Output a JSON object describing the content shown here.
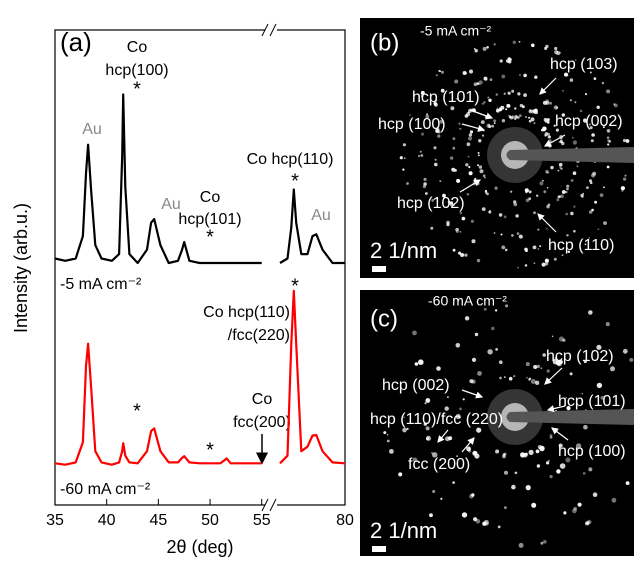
{
  "chart_data": {
    "type": "line",
    "xlabel": "2θ (deg)",
    "ylabel": "Intensity (arb.u.)",
    "x": [
      35,
      36,
      37,
      37.7,
      38.0,
      38.2,
      38.5,
      38.9,
      39.5,
      40.5,
      41.2,
      41.5,
      41.6,
      41.8,
      42.2,
      43,
      43.9,
      44.3,
      44.6,
      45.2,
      46,
      46.9,
      47.3,
      47.5,
      48,
      49,
      50,
      51,
      51.4,
      51.6,
      52,
      53,
      54,
      55,
      74.8,
      75.4,
      75.7,
      75.9,
      76.1,
      76.5,
      77.0,
      77.4,
      77.7,
      78.2,
      79,
      80
    ],
    "xlim": [
      [
        35,
        55.8
      ],
      [
        74.8,
        80
      ]
    ],
    "ylim": [
      -6,
      100
    ],
    "xticks": [
      35,
      40,
      45,
      50,
      55,
      80
    ],
    "series": [
      {
        "name": "-5 mA cm⁻²",
        "color": "#000000",
        "values": [
          49,
          48.5,
          49,
          54,
          68,
          74.4,
          64,
          52,
          49,
          48.5,
          50,
          72,
          85.6,
          65,
          50,
          48,
          51,
          57,
          57.8,
          52,
          48,
          48.5,
          51,
          52.7,
          48.5,
          48,
          48,
          48,
          48,
          48,
          48,
          48,
          48,
          48,
          48,
          49,
          56,
          64.4,
          57,
          50,
          50,
          54,
          54.4,
          51,
          48,
          48
        ]
      },
      {
        "name": "-60 mA cm⁻²",
        "color": "#ff0000",
        "values": [
          3.3,
          3,
          3.5,
          8,
          25,
          30,
          20,
          6,
          3.5,
          3,
          3.5,
          6,
          7.8,
          5,
          3.5,
          3.3,
          6,
          10.5,
          11.1,
          6,
          3.5,
          3.5,
          4.5,
          4.9,
          3.5,
          3.3,
          3.3,
          3.3,
          4,
          4.4,
          3.3,
          3.3,
          3.3,
          3.3,
          3.3,
          5,
          30,
          41.8,
          30,
          6,
          7,
          9.5,
          9.6,
          6,
          3.5,
          3.3
        ]
      }
    ],
    "annotations": [
      "(a)",
      "Co",
      "hcp(100)",
      "*",
      "Au",
      "Au",
      "Co",
      "hcp(101)",
      "*",
      "Co hcp(110)",
      "*",
      "Au",
      "*",
      "Co hcp(110)",
      "/fcc(220)",
      "Co",
      "fcc(200)",
      "*",
      "*"
    ]
  },
  "panels": [
    {
      "label": "(b)",
      "condition": "-5 mA cm⁻²",
      "labels": [
        "hcp (103)",
        "hcp (101)",
        "hcp (100)",
        "hcp (002)",
        "hcp (102)",
        "hcp (110)"
      ],
      "scale": "2 1/nm"
    },
    {
      "label": "(c)",
      "condition": "-60 mA cm⁻²",
      "labels": [
        "hcp (102)",
        "hcp (002)",
        "hcp (101)",
        "hcp (110)/fcc (220)",
        "fcc (200)",
        "hcp (100)"
      ],
      "scale": "2 1/nm"
    }
  ]
}
